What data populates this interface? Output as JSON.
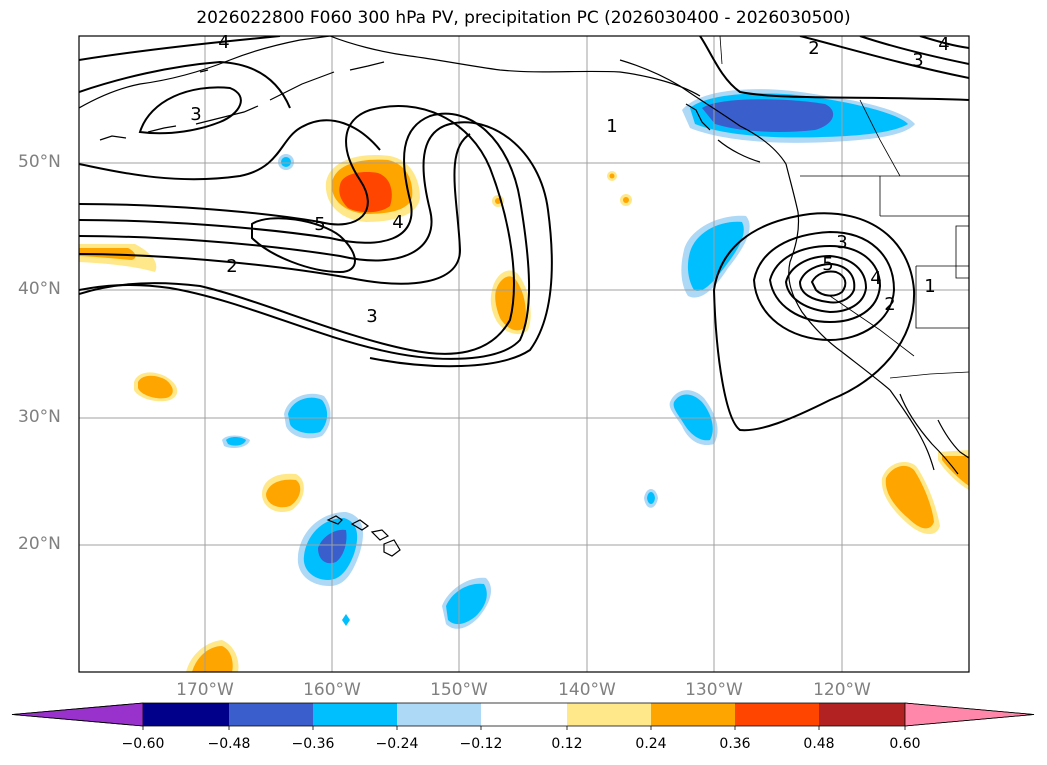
{
  "title": "2026022800 F060 300 hPa PV, precipitation PC (2026030400 - 2026030500)",
  "lat_labels": [
    "50°N",
    "40°N",
    "30°N",
    "20°N"
  ],
  "lon_labels": [
    "170°W",
    "160°W",
    "150°W",
    "140°W",
    "130°W",
    "120°W"
  ],
  "pv_contour_labels": [
    "4",
    "2",
    "3",
    "4",
    "3",
    "1",
    "5",
    "4",
    "2",
    "3",
    "3",
    "5",
    "4",
    "2",
    "1"
  ],
  "colorbar": {
    "ticks": [
      "−0.60",
      "−0.48",
      "−0.36",
      "−0.24",
      "−0.12",
      "0.12",
      "0.24",
      "0.36",
      "0.48",
      "0.60"
    ],
    "colors": [
      "#9932cc",
      "#00008b",
      "#3a5fcd",
      "#00bfff",
      "#add8f6",
      "#ffffff",
      "#ffe88a",
      "#ffa500",
      "#ff4500",
      "#b22222",
      "#ff88aa"
    ]
  },
  "colors": {
    "grid": "#a0a0a0",
    "coast": "#000000",
    "contour": "#000000",
    "light_blue": "#add8f6",
    "blue": "#00bfff",
    "dark_blue": "#3a5fcd",
    "light_orange": "#ffe88a",
    "orange": "#ffa500",
    "red_orange": "#ff4500"
  }
}
